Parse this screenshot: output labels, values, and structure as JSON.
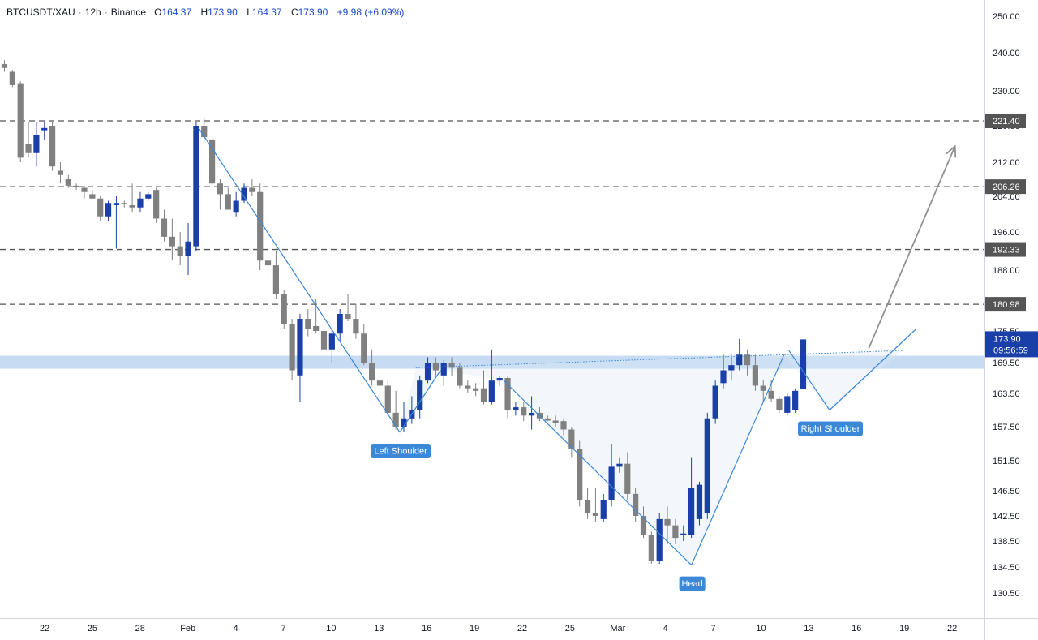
{
  "header": {
    "symbol": "BTCUSDT/XAU",
    "interval": "12h",
    "exchange": "Binance",
    "open_label": "O",
    "open": "164.37",
    "high_label": "H",
    "high": "173.90",
    "low_label": "L",
    "low": "164.37",
    "close_label": "C",
    "close": "173.90",
    "change": "+9.98 (+6.09%)"
  },
  "colors": {
    "up": "#1a3fa8",
    "down": "#808080",
    "zone": "#bdd6f0",
    "annotation": "#3b88d8",
    "level_line": "#555555",
    "arrow": "#909090",
    "current_price_bg": "#1a3fa8"
  },
  "chart_data": {
    "type": "candlestick",
    "timeframe": "12h",
    "x_ticks": [
      "22",
      "25",
      "28",
      "Feb",
      "4",
      "7",
      "10",
      "13",
      "16",
      "19",
      "22",
      "25",
      "Mar",
      "4",
      "7",
      "10",
      "13",
      "16",
      "19",
      "22"
    ],
    "y_ticks": [
      "250.00",
      "240.00",
      "230.00",
      "220.00",
      "212.00",
      "204.00",
      "196.00",
      "188.00",
      "175.50",
      "169.50",
      "163.50",
      "157.50",
      "151.50",
      "146.50",
      "142.50",
      "138.50",
      "134.50",
      "130.50"
    ],
    "y_range": [
      126.5,
      252
    ],
    "candles": [
      {
        "o": 237,
        "h": 238,
        "l": 235,
        "c": 236
      },
      {
        "o": 235,
        "h": 235.5,
        "l": 231,
        "c": 231.5
      },
      {
        "o": 232,
        "h": 232.5,
        "l": 212,
        "c": 213
      },
      {
        "o": 216,
        "h": 221,
        "l": 213,
        "c": 214
      },
      {
        "o": 214,
        "h": 221,
        "l": 211,
        "c": 218
      },
      {
        "o": 219,
        "h": 221,
        "l": 217,
        "c": 219.5
      },
      {
        "o": 220,
        "h": 221,
        "l": 210,
        "c": 211
      },
      {
        "o": 210,
        "h": 212,
        "l": 207,
        "c": 209
      },
      {
        "o": 208,
        "h": 209,
        "l": 206,
        "c": 206.5
      },
      {
        "o": 206.5,
        "h": 207,
        "l": 205.5,
        "c": 206.2
      },
      {
        "o": 206,
        "h": 206.5,
        "l": 203.5,
        "c": 205
      },
      {
        "o": 204.5,
        "h": 205.5,
        "l": 203.5,
        "c": 203.5
      },
      {
        "o": 203.5,
        "h": 204,
        "l": 198.5,
        "c": 199.5
      },
      {
        "o": 199.5,
        "h": 203,
        "l": 198.5,
        "c": 202.5
      },
      {
        "o": 202,
        "h": 204,
        "l": 192.5,
        "c": 202.5
      },
      {
        "o": 202.5,
        "h": 203,
        "l": 201.5,
        "c": 202.2
      },
      {
        "o": 202,
        "h": 207,
        "l": 200.5,
        "c": 201.5
      },
      {
        "o": 201.5,
        "h": 205,
        "l": 200.5,
        "c": 203.5
      },
      {
        "o": 203.5,
        "h": 205,
        "l": 203,
        "c": 204.5
      },
      {
        "o": 205.5,
        "h": 206,
        "l": 198,
        "c": 199
      },
      {
        "o": 199,
        "h": 201,
        "l": 194,
        "c": 195
      },
      {
        "o": 195,
        "h": 199,
        "l": 190,
        "c": 193
      },
      {
        "o": 193,
        "h": 196,
        "l": 189,
        "c": 191
      },
      {
        "o": 191,
        "h": 198,
        "l": 187,
        "c": 194
      },
      {
        "o": 193,
        "h": 221,
        "l": 192,
        "c": 220
      },
      {
        "o": 220,
        "h": 222,
        "l": 217,
        "c": 217.5
      },
      {
        "o": 217,
        "h": 218,
        "l": 206,
        "c": 207
      },
      {
        "o": 207,
        "h": 208,
        "l": 201,
        "c": 204.5
      },
      {
        "o": 204.5,
        "h": 206,
        "l": 201,
        "c": 201
      },
      {
        "o": 200.5,
        "h": 205,
        "l": 199.5,
        "c": 203
      },
      {
        "o": 203,
        "h": 207,
        "l": 202.5,
        "c": 206
      },
      {
        "o": 206,
        "h": 208,
        "l": 204,
        "c": 205
      },
      {
        "o": 205,
        "h": 207,
        "l": 188,
        "c": 190
      },
      {
        "o": 190,
        "h": 191,
        "l": 187,
        "c": 189
      },
      {
        "o": 189,
        "h": 192,
        "l": 182,
        "c": 183
      },
      {
        "o": 183,
        "h": 184,
        "l": 176,
        "c": 177
      },
      {
        "o": 177,
        "h": 178,
        "l": 166,
        "c": 168
      },
      {
        "o": 167,
        "h": 179,
        "l": 162,
        "c": 178
      },
      {
        "o": 178,
        "h": 180,
        "l": 174.5,
        "c": 176
      },
      {
        "o": 176.5,
        "h": 182,
        "l": 175,
        "c": 175.5
      },
      {
        "o": 175.5,
        "h": 178,
        "l": 171,
        "c": 172
      },
      {
        "o": 172,
        "h": 176,
        "l": 169.5,
        "c": 175
      },
      {
        "o": 175,
        "h": 180,
        "l": 173.5,
        "c": 179
      },
      {
        "o": 179,
        "h": 183,
        "l": 177.5,
        "c": 178
      },
      {
        "o": 178,
        "h": 181,
        "l": 174,
        "c": 175
      },
      {
        "o": 175,
        "h": 177,
        "l": 169,
        "c": 169.5
      },
      {
        "o": 169.5,
        "h": 172,
        "l": 165,
        "c": 166
      },
      {
        "o": 166,
        "h": 167,
        "l": 164,
        "c": 165
      },
      {
        "o": 165,
        "h": 166,
        "l": 159.5,
        "c": 160
      },
      {
        "o": 160,
        "h": 164,
        "l": 157,
        "c": 157.5
      },
      {
        "o": 157.5,
        "h": 162,
        "l": 156.5,
        "c": 159
      },
      {
        "o": 159,
        "h": 163,
        "l": 158,
        "c": 160.5
      },
      {
        "o": 160.5,
        "h": 167,
        "l": 159,
        "c": 166
      },
      {
        "o": 166,
        "h": 170.5,
        "l": 165.5,
        "c": 169.5
      },
      {
        "o": 169.5,
        "h": 170.5,
        "l": 167,
        "c": 168
      },
      {
        "o": 167,
        "h": 170,
        "l": 165,
        "c": 169.5
      },
      {
        "o": 169.5,
        "h": 170.5,
        "l": 167,
        "c": 168.5
      },
      {
        "o": 168.5,
        "h": 169.5,
        "l": 164.5,
        "c": 165
      },
      {
        "o": 165,
        "h": 166,
        "l": 163.5,
        "c": 164.5
      },
      {
        "o": 164.5,
        "h": 165.5,
        "l": 163,
        "c": 164
      },
      {
        "o": 164.5,
        "h": 168,
        "l": 161.5,
        "c": 162
      },
      {
        "o": 162,
        "h": 172,
        "l": 161.5,
        "c": 166
      },
      {
        "o": 166,
        "h": 167,
        "l": 165,
        "c": 166.5
      },
      {
        "o": 166.5,
        "h": 167,
        "l": 159,
        "c": 160.5
      },
      {
        "o": 160.5,
        "h": 162,
        "l": 159.5,
        "c": 161
      },
      {
        "o": 161,
        "h": 162,
        "l": 158.5,
        "c": 159.5
      },
      {
        "o": 159.5,
        "h": 163,
        "l": 157,
        "c": 160
      },
      {
        "o": 160,
        "h": 161,
        "l": 158.5,
        "c": 159
      },
      {
        "o": 159,
        "h": 159.5,
        "l": 158.5,
        "c": 158.6
      },
      {
        "o": 158.6,
        "h": 159.5,
        "l": 157.5,
        "c": 158.2
      },
      {
        "o": 158.5,
        "h": 159,
        "l": 156,
        "c": 157
      },
      {
        "o": 157,
        "h": 157.5,
        "l": 152,
        "c": 153.5
      },
      {
        "o": 153.5,
        "h": 155,
        "l": 144,
        "c": 145
      },
      {
        "o": 145,
        "h": 147,
        "l": 142,
        "c": 143
      },
      {
        "o": 143,
        "h": 147,
        "l": 141.5,
        "c": 142.5
      },
      {
        "o": 142,
        "h": 146,
        "l": 141.5,
        "c": 145
      },
      {
        "o": 145,
        "h": 154.5,
        "l": 144,
        "c": 150.5
      },
      {
        "o": 150.5,
        "h": 152,
        "l": 149.5,
        "c": 151
      },
      {
        "o": 151,
        "h": 153,
        "l": 145,
        "c": 146
      },
      {
        "o": 146,
        "h": 147,
        "l": 141.5,
        "c": 142.5
      },
      {
        "o": 142.5,
        "h": 144,
        "l": 139,
        "c": 139.5
      },
      {
        "o": 139.5,
        "h": 140,
        "l": 135,
        "c": 135.5
      },
      {
        "o": 135.5,
        "h": 143,
        "l": 135,
        "c": 142
      },
      {
        "o": 142,
        "h": 144,
        "l": 138,
        "c": 141
      },
      {
        "o": 141,
        "h": 142,
        "l": 138,
        "c": 139
      },
      {
        "o": 139.5,
        "h": 141,
        "l": 138.5,
        "c": 139.7
      },
      {
        "o": 139.5,
        "h": 152,
        "l": 139,
        "c": 147
      },
      {
        "o": 142,
        "h": 148,
        "l": 141,
        "c": 147.5
      },
      {
        "o": 143,
        "h": 160,
        "l": 142,
        "c": 159
      },
      {
        "o": 159,
        "h": 166,
        "l": 158,
        "c": 165
      },
      {
        "o": 165.5,
        "h": 171,
        "l": 164.5,
        "c": 168
      },
      {
        "o": 168,
        "h": 171,
        "l": 166,
        "c": 169
      },
      {
        "o": 169,
        "h": 174,
        "l": 168,
        "c": 171
      },
      {
        "o": 171,
        "h": 172,
        "l": 167,
        "c": 169
      },
      {
        "o": 169,
        "h": 171,
        "l": 164,
        "c": 165
      },
      {
        "o": 165,
        "h": 166,
        "l": 162,
        "c": 164
      },
      {
        "o": 164,
        "h": 166,
        "l": 162,
        "c": 162.5
      },
      {
        "o": 162.5,
        "h": 163,
        "l": 160,
        "c": 160.5
      },
      {
        "o": 160,
        "h": 163.5,
        "l": 159.5,
        "c": 163
      },
      {
        "o": 160.5,
        "h": 164.5,
        "l": 160,
        "c": 164
      },
      {
        "o": 164.37,
        "h": 173.9,
        "l": 164.37,
        "c": 173.9
      }
    ],
    "levels": [
      "221.40",
      "206.26",
      "192.33",
      "180.98"
    ],
    "current_price": {
      "value": "173.90",
      "countdown": "09:56:59"
    },
    "zone": {
      "from": 168.3,
      "to": 170.8
    },
    "annotations": [
      "Left Shoulder",
      "Head",
      "Right Shoulder"
    ],
    "trend_lines": [
      {
        "from": {
          "i": 24.3,
          "v": 219.5
        },
        "to": {
          "i": 49.5,
          "v": 156.5
        }
      },
      {
        "from": {
          "i": 49.5,
          "v": 156.5
        },
        "to": {
          "i": 54.6,
          "v": 168
        }
      },
      {
        "from": {
          "i": 62.5,
          "v": 166
        },
        "to": {
          "i": 86.0,
          "v": 134.8
        }
      },
      {
        "from": {
          "i": 86.0,
          "v": 134.8
        },
        "to": {
          "i": 97.6,
          "v": 171
        }
      },
      {
        "from": {
          "i": 98.2,
          "v": 171.8
        },
        "to": {
          "i": 103.3,
          "v": 160.5
        }
      },
      {
        "from": {
          "i": 103.3,
          "v": 160.5
        },
        "to": {
          "i": 114.2,
          "v": 176
        }
      }
    ],
    "neckline": {
      "from": {
        "i": 51.5,
        "v": 168.5
      },
      "to": {
        "i": 112.5,
        "v": 171.8
      }
    },
    "arrow": {
      "from": {
        "i": 108.2,
        "v": 172.2
      },
      "to": {
        "i": 119.0,
        "v": 215.5
      }
    }
  }
}
